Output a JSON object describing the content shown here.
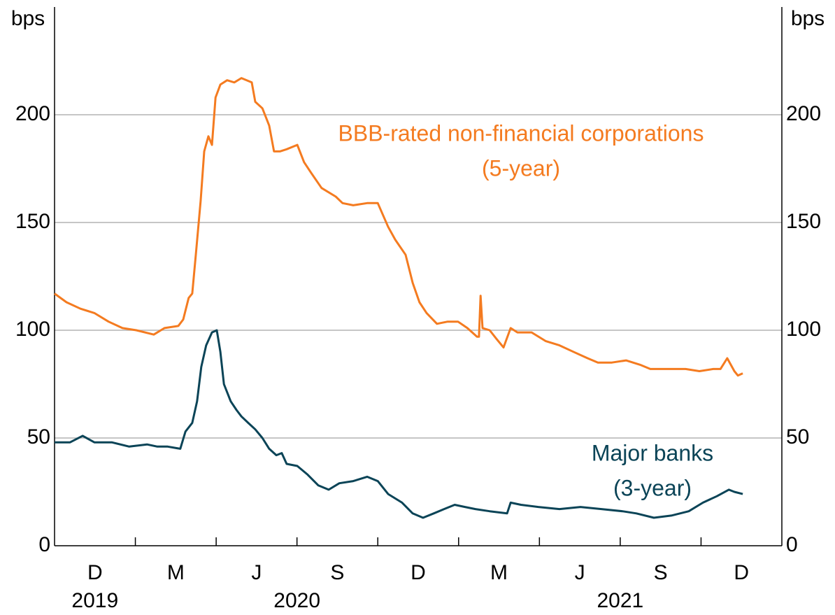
{
  "chart_data": {
    "type": "line",
    "ylabel": "bps",
    "y2label": "bps",
    "ylim": [
      0,
      250
    ],
    "yticks": [
      0,
      50,
      100,
      150,
      200
    ],
    "y2lim": [
      0,
      250
    ],
    "y2ticks": [
      0,
      50,
      100,
      150,
      200
    ],
    "xlim": [
      2019.833,
      2022.083
    ],
    "xticks": [
      2020.083,
      2020.333,
      2020.583,
      2020.833,
      2021.083,
      2021.333,
      2021.583,
      2021.833
    ],
    "xtick_labels": [
      {
        "value": 2019.958,
        "label": "D"
      },
      {
        "value": 2020.208,
        "label": "M"
      },
      {
        "value": 2020.458,
        "label": "J"
      },
      {
        "value": 2020.708,
        "label": "S"
      },
      {
        "value": 2020.958,
        "label": "D"
      },
      {
        "value": 2021.208,
        "label": "M"
      },
      {
        "value": 2021.458,
        "label": "J"
      },
      {
        "value": 2021.708,
        "label": "S"
      },
      {
        "value": 2021.958,
        "label": "D"
      }
    ],
    "year_labels": [
      {
        "value": 2019.958,
        "label": "2019"
      },
      {
        "value": 2020.583,
        "label": "2020"
      },
      {
        "value": 2021.583,
        "label": "2021"
      }
    ],
    "grid": true,
    "series": [
      {
        "name": [
          "BBB-rated non-financial corporations",
          "(5-year)"
        ],
        "color": "#f47b20",
        "x": [
          2019.833,
          2019.87,
          2019.913,
          2019.956,
          2020.0,
          2020.043,
          2020.086,
          2020.14,
          2020.173,
          2020.216,
          2020.231,
          2020.248,
          2020.259,
          2020.27,
          2020.285,
          2020.296,
          2020.309,
          2020.32,
          2020.331,
          2020.346,
          2020.367,
          2020.389,
          2020.411,
          2020.443,
          2020.454,
          2020.476,
          2020.497,
          2020.512,
          2020.53,
          2020.551,
          2020.584,
          2020.605,
          2020.627,
          2020.659,
          2020.703,
          2020.724,
          2020.757,
          2020.8,
          2020.833,
          2020.865,
          2020.887,
          2020.919,
          2020.941,
          2020.962,
          2020.984,
          2021.016,
          2021.049,
          2021.081,
          2021.11,
          2021.14,
          2021.146,
          2021.151,
          2021.157,
          2021.179,
          2021.2,
          2021.222,
          2021.244,
          2021.265,
          2021.309,
          2021.352,
          2021.395,
          2021.438,
          2021.482,
          2021.514,
          2021.557,
          2021.601,
          2021.644,
          2021.676,
          2021.72,
          2021.785,
          2021.828,
          2021.871,
          2021.893,
          2021.914,
          2021.936,
          2021.947,
          2021.962
        ],
        "values": [
          117,
          113,
          110,
          108,
          104,
          101,
          100,
          98,
          101,
          102,
          105,
          115,
          117,
          135,
          160,
          183,
          190,
          186,
          208,
          214,
          216,
          215,
          217,
          215,
          206,
          203,
          195,
          183,
          183,
          184,
          186,
          178,
          173,
          166,
          162,
          159,
          158,
          159,
          159,
          148,
          142,
          135,
          122,
          113,
          108,
          103,
          104,
          104,
          101,
          97,
          97,
          116,
          101,
          100,
          96,
          92,
          101,
          99,
          99,
          95,
          93,
          90,
          87,
          85,
          85,
          86,
          84,
          82,
          82,
          82,
          81,
          82,
          82,
          87,
          81,
          79,
          80
        ]
      },
      {
        "name": [
          "Major banks",
          "(3-year)"
        ],
        "color": "#0b4457",
        "x": [
          2019.833,
          2019.881,
          2019.92,
          2019.956,
          2020.01,
          2020.064,
          2020.119,
          2020.151,
          2020.183,
          2020.222,
          2020.238,
          2020.259,
          2020.274,
          2020.287,
          2020.302,
          2020.32,
          2020.335,
          2020.346,
          2020.357,
          2020.378,
          2020.396,
          2020.411,
          2020.432,
          2020.454,
          2020.476,
          2020.497,
          2020.519,
          2020.536,
          2020.551,
          2020.584,
          2020.616,
          2020.649,
          2020.681,
          2020.714,
          2020.757,
          2020.8,
          2020.833,
          2020.865,
          2020.908,
          2020.941,
          2020.973,
          2021.006,
          2021.038,
          2021.071,
          2021.103,
          2021.135,
          2021.179,
          2021.233,
          2021.244,
          2021.276,
          2021.33,
          2021.395,
          2021.46,
          2021.525,
          2021.59,
          2021.633,
          2021.687,
          2021.741,
          2021.795,
          2021.839,
          2021.882,
          2021.919,
          2021.936,
          2021.962
        ],
        "values": [
          48,
          48,
          51,
          48,
          48,
          46,
          47,
          46,
          46,
          45,
          53,
          57,
          67,
          83,
          93,
          99,
          100,
          90,
          75,
          67,
          63,
          60,
          57,
          54,
          50,
          45,
          42,
          43,
          38,
          37,
          33,
          28,
          26,
          29,
          30,
          32,
          30,
          24,
          20,
          15,
          13,
          15,
          17,
          19,
          18,
          17,
          16,
          15,
          20,
          19,
          18,
          17,
          18,
          17,
          16,
          15,
          13,
          14,
          16,
          20,
          23,
          26,
          25,
          24
        ]
      }
    ]
  }
}
